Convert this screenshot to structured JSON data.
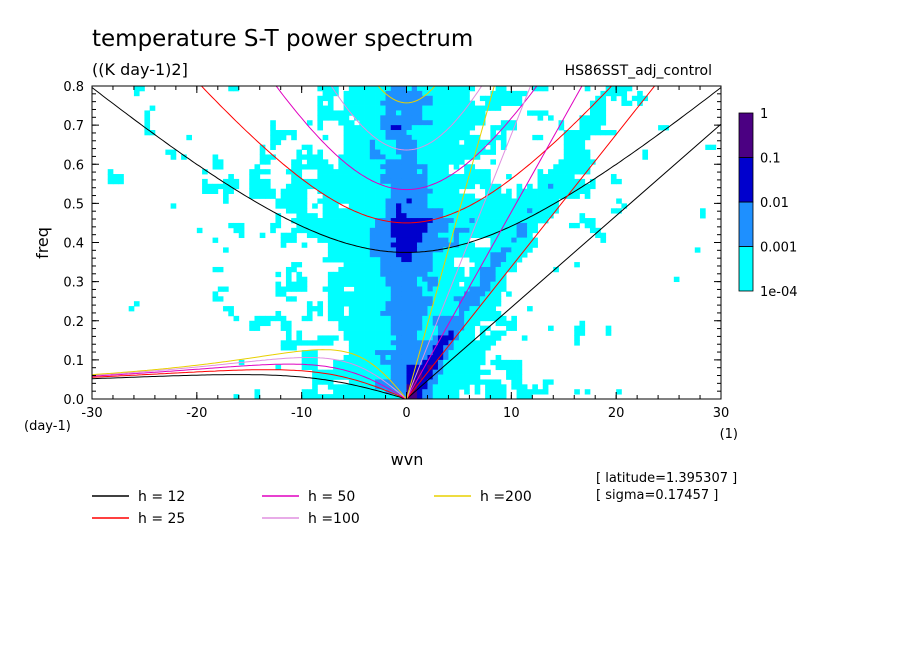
{
  "chart_data": {
    "type": "heatmap",
    "title": "temperature S-T power spectrum",
    "units": "((K day-1)2]",
    "experiment": "HS86SST_adj_control",
    "xlabel": "wvn",
    "ylabel": "freq",
    "x_unit": "(1)",
    "y_unit": "(day-1)",
    "xlim": [
      -30,
      30
    ],
    "ylim": [
      0,
      0.8
    ],
    "x_ticks": [
      "-30",
      "-20",
      "-10",
      "0",
      "10",
      "20",
      "30"
    ],
    "y_ticks": [
      "0.0",
      "0.1",
      "0.2",
      "0.3",
      "0.4",
      "0.5",
      "0.6",
      "0.7",
      "0.8"
    ],
    "colorbar": {
      "levels": [
        "1e-04",
        "0.001",
        "0.01",
        "0.1",
        "1"
      ],
      "colors": [
        "#00ffff",
        "#1e90ff",
        "#0000cd",
        "#4b0082"
      ]
    },
    "dispersion_curves": [
      {
        "label": "h = 12",
        "h": 12,
        "color": "#000000"
      },
      {
        "label": "h = 25",
        "h": 25,
        "color": "#ff0000"
      },
      {
        "label": "h = 50",
        "h": 50,
        "color": "#e000c0"
      },
      {
        "label": "h =100",
        "h": 100,
        "color": "#e090e0"
      },
      {
        "label": "h =200",
        "h": 200,
        "color": "#e8d000"
      }
    ],
    "info": [
      "[ latitude=1.395307 ]",
      "[ sigma=0.17457 ]"
    ]
  }
}
